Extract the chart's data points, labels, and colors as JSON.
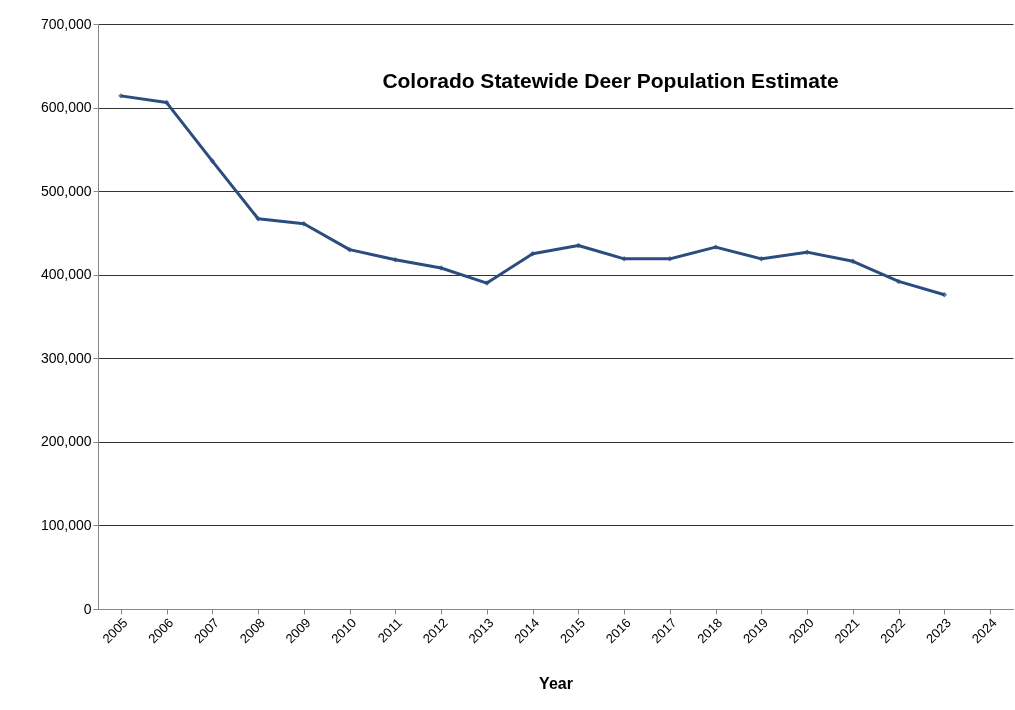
{
  "chart_data": {
    "type": "line",
    "title": "Colorado Statewide Deer Population Estimate",
    "xlabel": "Year",
    "categories": [
      "2005",
      "2006",
      "2007",
      "2008",
      "2009",
      "2010",
      "2011",
      "2012",
      "2013",
      "2014",
      "2015",
      "2016",
      "2017",
      "2018",
      "2019",
      "2020",
      "2021",
      "2022",
      "2023",
      "2024"
    ],
    "series": [
      {
        "color": "#2b4c7e",
        "values": [
          614000,
          606000,
          536000,
          467000,
          461000,
          430000,
          418000,
          408000,
          390000,
          425000,
          435000,
          419000,
          419000,
          433000,
          419000,
          427000,
          416000,
          392000,
          376000,
          null
        ]
      }
    ],
    "ylim": [
      0,
      700000
    ],
    "yticks": [
      0,
      {
        "value": 100000,
        "label": "100,000"
      },
      {
        "value": 200000,
        "label": "200,000"
      },
      {
        "value": 300000,
        "label": "300,000"
      },
      {
        "value": 400000,
        "label": "400,000"
      },
      {
        "value": 500000,
        "label": "500,000"
      },
      {
        "value": 600000,
        "label": "600,000"
      },
      {
        "value": 700000,
        "label": "700,000"
      }
    ],
    "grid": "y",
    "marker": "diamond",
    "line_style": "solid",
    "legend": false
  }
}
